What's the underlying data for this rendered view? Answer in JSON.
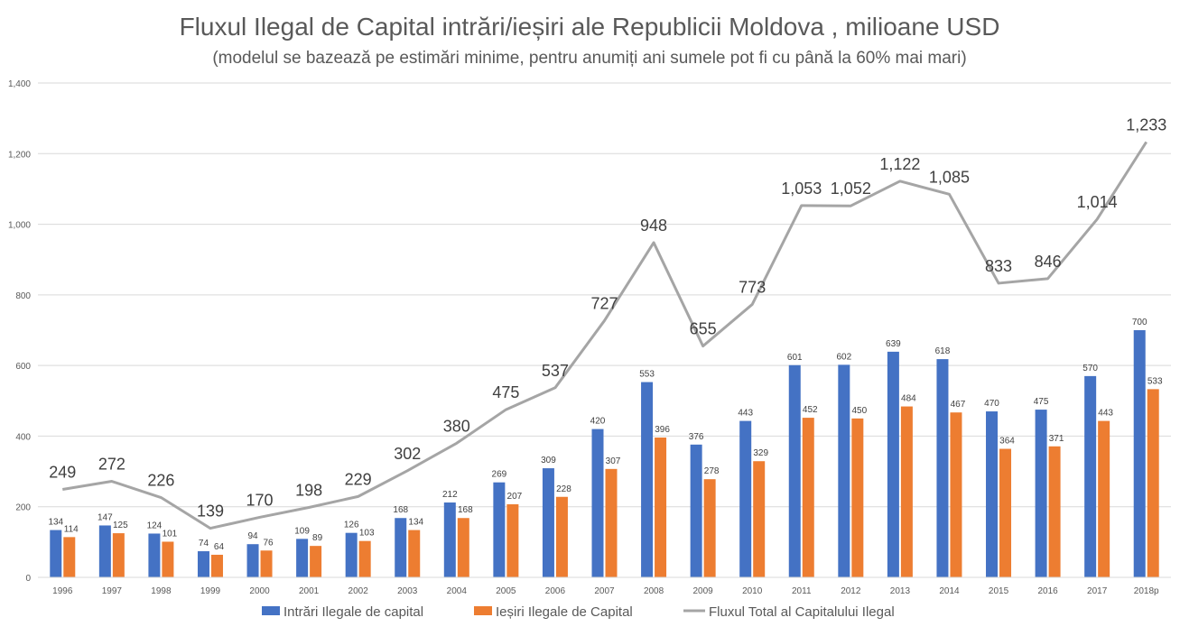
{
  "chart_data": {
    "type": "bar",
    "title": "Fluxul Ilegal de Capital intrări/ieșiri ale Republicii Moldova , milioane USD",
    "subtitle": "(modelul se bazează pe estimări minime, pentru anumiți ani sumele pot fi cu până la 60% mai mari)",
    "categories": [
      "1996",
      "1997",
      "1998",
      "1999",
      "2000",
      "2001",
      "2002",
      "2003",
      "2004",
      "2005",
      "2006",
      "2007",
      "2008",
      "2009",
      "2010",
      "2011",
      "2012",
      "2013",
      "2014",
      "2015",
      "2016",
      "2017",
      "2018p"
    ],
    "ylim": [
      0,
      1400
    ],
    "y_ticks": [
      0,
      200,
      400,
      600,
      800,
      1000,
      1200,
      1400
    ],
    "y_tick_labels": [
      "0",
      "200",
      "400",
      "600",
      "800",
      "1,000",
      "1,200",
      "1,400"
    ],
    "grid": true,
    "legend_position": "bottom",
    "series": [
      {
        "name": "Intrări Ilegale de capital",
        "kind": "bar",
        "color": "#4472C4",
        "values": [
          134,
          147,
          124,
          74,
          94,
          109,
          126,
          168,
          212,
          269,
          309,
          420,
          553,
          376,
          443,
          601,
          602,
          639,
          618,
          470,
          475,
          570,
          700
        ],
        "labels": [
          "134",
          "147",
          "124",
          "74",
          "94",
          "109",
          "126",
          "168",
          "212",
          "269",
          "309",
          "420",
          "553",
          "376",
          "443",
          "601",
          "602",
          "639",
          "618",
          "470",
          "475",
          "570",
          "700"
        ]
      },
      {
        "name": "Ieșiri Ilegale de Capital",
        "kind": "bar",
        "color": "#ED7D31",
        "values": [
          114,
          125,
          101,
          64,
          76,
          89,
          103,
          134,
          168,
          207,
          228,
          307,
          396,
          278,
          329,
          452,
          450,
          484,
          467,
          364,
          371,
          443,
          533
        ],
        "labels": [
          "114",
          "125",
          "101",
          "64",
          "76",
          "89",
          "103",
          "134",
          "168",
          "207",
          "228",
          "307",
          "396",
          "278",
          "329",
          "452",
          "450",
          "484",
          "467",
          "364",
          "371",
          "443",
          "533"
        ]
      },
      {
        "name": "Fluxul Total al Capitalului Ilegal",
        "kind": "line",
        "color": "#A5A5A5",
        "values": [
          249,
          272,
          226,
          139,
          170,
          198,
          229,
          302,
          380,
          475,
          537,
          727,
          948,
          655,
          773,
          1053,
          1052,
          1122,
          1085,
          833,
          846,
          1014,
          1233
        ],
        "labels": [
          "249",
          "272",
          "226",
          "139",
          "170",
          "198",
          "229",
          "302",
          "380",
          "475",
          "537",
          "727",
          "948",
          "655",
          "773",
          "1,053",
          "1,052",
          "1,122",
          "1,085",
          "833",
          "846",
          "1,014",
          "1,233"
        ]
      }
    ]
  }
}
